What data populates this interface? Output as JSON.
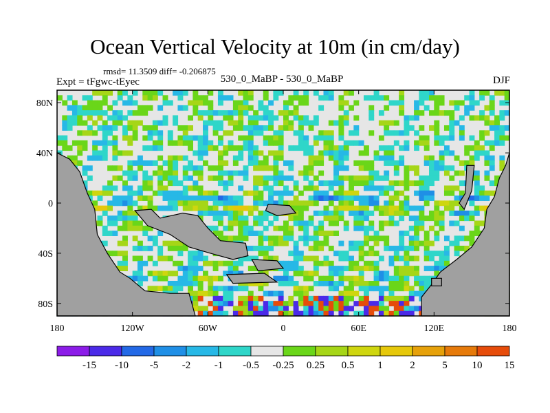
{
  "title": "Ocean Vertical Velocity at 10m (in cm/day)",
  "stats_text": "rmsd= 11.3509 diff= -0.206875",
  "experiment_label": "Expt = tFgwc-tEyec",
  "center_label": "530_0_MaBP - 530_0_MaBP",
  "season_label": "DJF",
  "colors": {
    "land": "#a0a0a0",
    "frame": "#000000"
  },
  "chart_data": {
    "type": "heatmap",
    "title": "Ocean Vertical Velocity at 10m (in cm/day)",
    "xlim": [
      -180,
      180
    ],
    "ylim": [
      -90,
      90
    ],
    "x_ticks": [
      {
        "value": -180,
        "label": "180"
      },
      {
        "value": -120,
        "label": "120W"
      },
      {
        "value": -60,
        "label": "60W"
      },
      {
        "value": 0,
        "label": "0"
      },
      {
        "value": 60,
        "label": "60E"
      },
      {
        "value": 120,
        "label": "120E"
      },
      {
        "value": 180,
        "label": "180"
      }
    ],
    "y_ticks": [
      {
        "value": 80,
        "label": "80N"
      },
      {
        "value": 40,
        "label": "40N"
      },
      {
        "value": 0,
        "label": "0"
      },
      {
        "value": -40,
        "label": "40S"
      },
      {
        "value": -80,
        "label": "80S"
      }
    ],
    "colorbar": {
      "colors": [
        "#8c1ce8",
        "#4b2ae8",
        "#2369e6",
        "#1f8fe6",
        "#27b8e6",
        "#2fd6c9",
        "#e6e6e6",
        "#6ad619",
        "#a6d617",
        "#cfd60f",
        "#e6c80a",
        "#e6a10a",
        "#e67a0a",
        "#e64c0a"
      ],
      "labels": [
        "-15",
        "-10",
        "-5",
        "-2",
        "-1",
        "-0.5",
        "-0.25",
        "0.25",
        "0.5",
        "1",
        "2",
        "5",
        "10",
        "15"
      ]
    }
  }
}
